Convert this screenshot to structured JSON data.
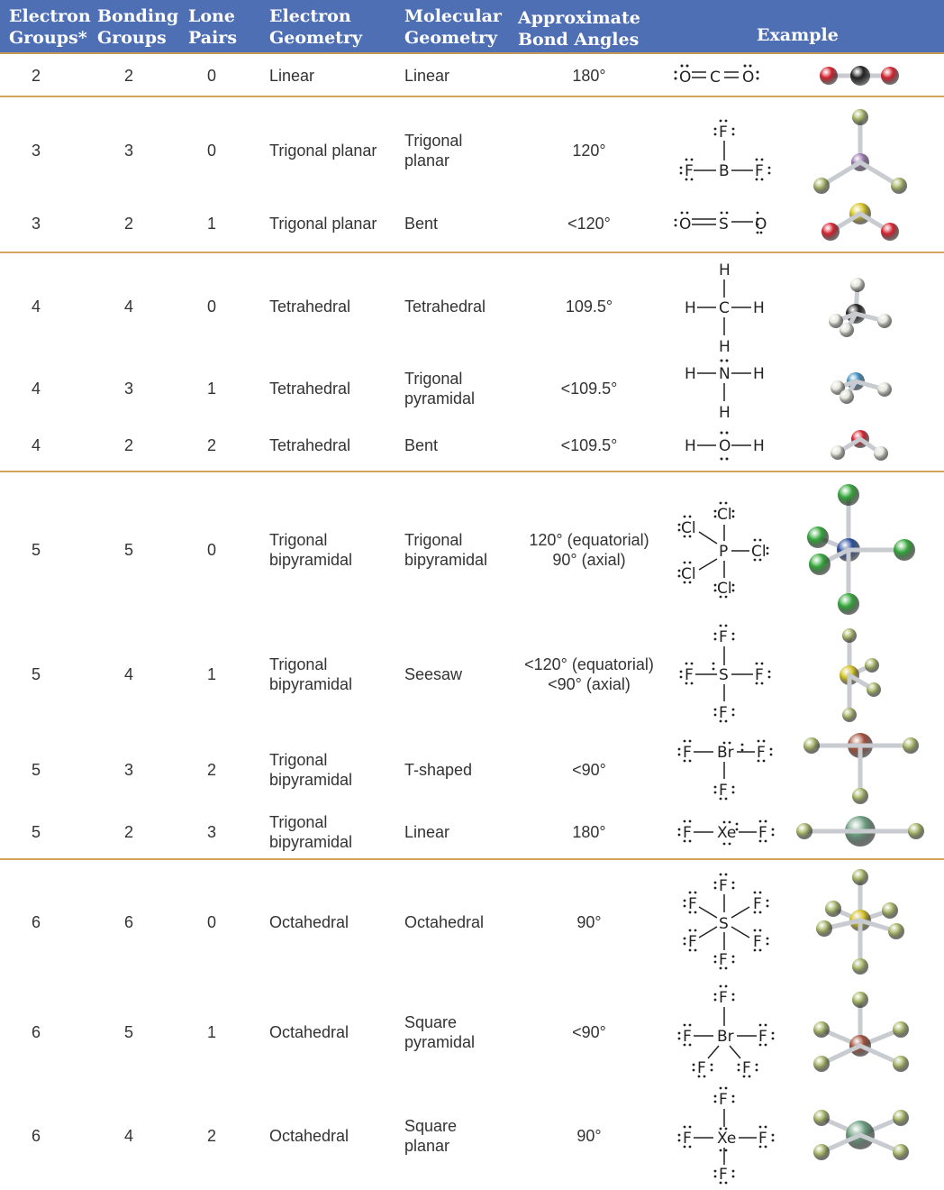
{
  "headers": {
    "electron_groups": "Electron\nGroups*",
    "bonding_groups": "Bonding\nGroups",
    "lone_pairs": "Lone\nPairs",
    "electron_geometry": "Electron\nGeometry",
    "molecular_geometry": "Molecular\nGeometry",
    "bond_angles": "Approximate\nBond Angles",
    "example": "Example"
  },
  "rows": [
    {
      "electron_groups": "2",
      "bonding_groups": "2",
      "lone_pairs": "0",
      "electron_geometry": "Linear",
      "molecular_geometry": "Linear",
      "bond_angles": "180°",
      "example": "CO2"
    },
    {
      "electron_groups": "3",
      "bonding_groups": "3",
      "lone_pairs": "0",
      "electron_geometry": "Trigonal planar",
      "molecular_geometry": "Trigonal\nplanar",
      "bond_angles": "120°",
      "example": "BF3"
    },
    {
      "electron_groups": "3",
      "bonding_groups": "2",
      "lone_pairs": "1",
      "electron_geometry": "Trigonal planar",
      "molecular_geometry": "Bent",
      "bond_angles": "<120°",
      "example": "SO2"
    },
    {
      "electron_groups": "4",
      "bonding_groups": "4",
      "lone_pairs": "0",
      "electron_geometry": "Tetrahedral",
      "molecular_geometry": "Tetrahedral",
      "bond_angles": "109.5°",
      "example": "CH4"
    },
    {
      "electron_groups": "4",
      "bonding_groups": "3",
      "lone_pairs": "1",
      "electron_geometry": "Tetrahedral",
      "molecular_geometry": "Trigonal\npyramidal",
      "bond_angles": "<109.5°",
      "example": "NH3"
    },
    {
      "electron_groups": "4",
      "bonding_groups": "2",
      "lone_pairs": "2",
      "electron_geometry": "Tetrahedral",
      "molecular_geometry": "Bent",
      "bond_angles": "<109.5°",
      "example": "H2O"
    },
    {
      "electron_groups": "5",
      "bonding_groups": "5",
      "lone_pairs": "0",
      "electron_geometry": "Trigonal\nbipyramidal",
      "molecular_geometry": "Trigonal\nbipyramidal",
      "bond_angles": "120° (equatorial)\n90° (axial)",
      "example": "PCl5"
    },
    {
      "electron_groups": "5",
      "bonding_groups": "4",
      "lone_pairs": "1",
      "electron_geometry": "Trigonal\nbipyramidal",
      "molecular_geometry": "Seesaw",
      "bond_angles": "<120° (equatorial)\n<90° (axial)",
      "example": "SF4"
    },
    {
      "electron_groups": "5",
      "bonding_groups": "3",
      "lone_pairs": "2",
      "electron_geometry": "Trigonal\nbipyramidal",
      "molecular_geometry": "T-shaped",
      "bond_angles": "<90°",
      "example": "BrF3"
    },
    {
      "electron_groups": "5",
      "bonding_groups": "2",
      "lone_pairs": "3",
      "electron_geometry": "Trigonal\nbipyramidal",
      "molecular_geometry": "Linear",
      "bond_angles": "180°",
      "example": "XeF2"
    },
    {
      "electron_groups": "6",
      "bonding_groups": "6",
      "lone_pairs": "0",
      "electron_geometry": "Octahedral",
      "molecular_geometry": "Octahedral",
      "bond_angles": "90°",
      "example": "SF6"
    },
    {
      "electron_groups": "6",
      "bonding_groups": "5",
      "lone_pairs": "1",
      "electron_geometry": "Octahedral",
      "molecular_geometry": "Square\npyramidal",
      "bond_angles": "<90°",
      "example": "BrF5"
    },
    {
      "electron_groups": "6",
      "bonding_groups": "4",
      "lone_pairs": "2",
      "electron_geometry": "Octahedral",
      "molecular_geometry": "Square\nplanar",
      "bond_angles": "90°",
      "example": "XeF4"
    }
  ],
  "lewis_labels": {
    "O": "O",
    "C": "C",
    "F": "F",
    "B": "B",
    "S": "S",
    "H": "H",
    "N": "N",
    "Cl": "Cl",
    "P": "P",
    "Br": "Br",
    "Xe": "Xe"
  },
  "atom_colors": {
    "O": "#d7222f",
    "C": "#222222",
    "B": "#a07ab5",
    "F": "#a9b86a",
    "S": "#d6c424",
    "H": "#e6e6dc",
    "N": "#3f8fc4",
    "Cl": "#33a83a",
    "P": "#2b4f9e",
    "Br": "#a4503a",
    "Xe": "#6c9e80"
  },
  "header_color": "#4e6fb4",
  "separator_color": "#d4a35c"
}
